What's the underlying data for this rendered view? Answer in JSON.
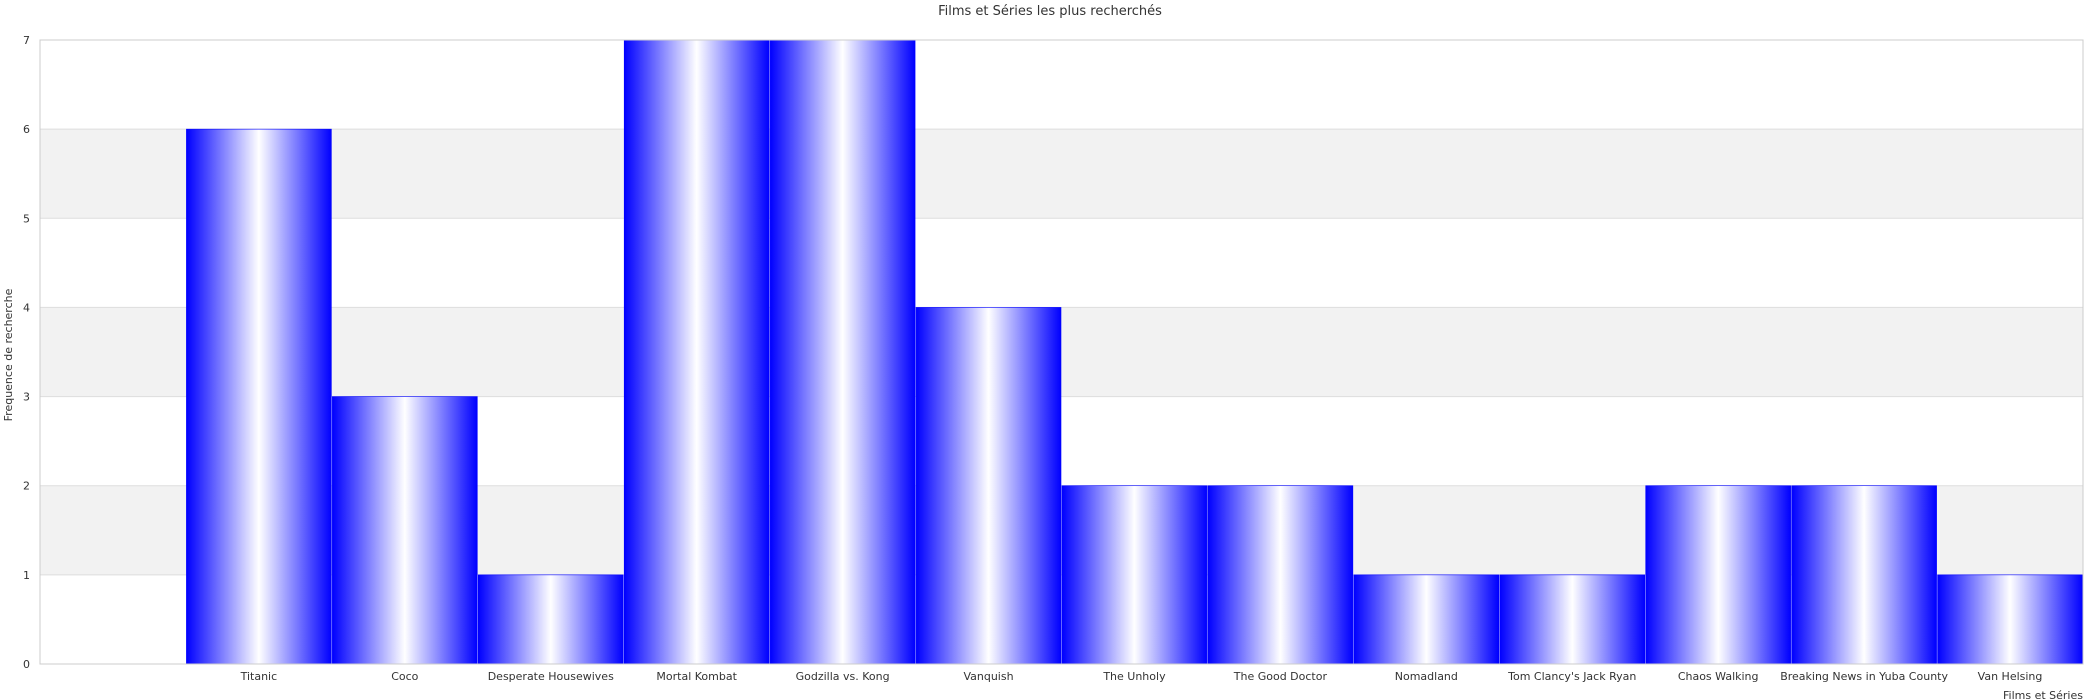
{
  "chart_data": {
    "type": "bar",
    "title": "Films et Séries les plus recherchés",
    "xlabel": "Films et Séries",
    "ylabel": "Frequence de recherche",
    "categories": [
      "",
      "Titanic",
      "Coco",
      "Desperate Housewives",
      "Mortal Kombat",
      "Godzilla vs. Kong",
      "Vanquish",
      "The Unholy",
      "The Good Doctor",
      "Nomadland",
      "Tom Clancy's Jack Ryan",
      "Chaos Walking",
      "Breaking News in Yuba County",
      "Van Helsing"
    ],
    "values": [
      0,
      6,
      3,
      1,
      7,
      7,
      4,
      2,
      2,
      1,
      1,
      2,
      2,
      1
    ],
    "ylim": [
      0,
      7
    ],
    "yticks": [
      0,
      1,
      2,
      3,
      4,
      5,
      6,
      7
    ],
    "grid": true,
    "legend": "none",
    "colors": {
      "bar_edge": "#0000ff",
      "bar_center": "#ffffff",
      "band": "#f2f2f2",
      "grid": "#dddddd",
      "axis": "#cccccc"
    }
  }
}
